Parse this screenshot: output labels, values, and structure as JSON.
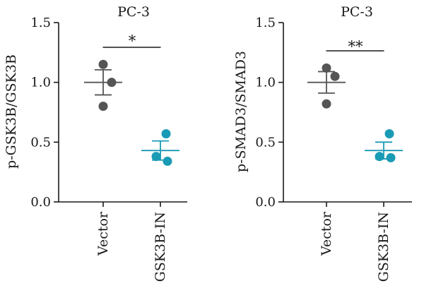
{
  "chart_data": [
    {
      "type": "scatter",
      "title": "PC-3",
      "ylabel": "p-GSK3B/GSK3B",
      "ylim": [
        0,
        1.5
      ],
      "yticks": [
        "0.0",
        "0.5",
        "1.0",
        "1.5"
      ],
      "categories": [
        "Vector",
        "GSK3B-IN"
      ],
      "colors": [
        "#555555",
        "#1a9bb5"
      ],
      "points": [
        [
          1.15,
          1.0,
          0.8
        ],
        [
          0.57,
          0.38,
          0.34
        ]
      ],
      "mean": [
        1.0,
        0.43
      ],
      "error": [
        0.105,
        0.08
      ],
      "significance": "*"
    },
    {
      "type": "scatter",
      "title": "PC-3",
      "ylabel": "p-SMAD3/SMAD3",
      "ylim": [
        0,
        1.5
      ],
      "yticks": [
        "0.0",
        "0.5",
        "1.0",
        "1.5"
      ],
      "categories": [
        "Vector",
        "GSK3B-IN"
      ],
      "colors": [
        "#555555",
        "#1a9bb5"
      ],
      "points": [
        [
          1.12,
          1.05,
          0.82
        ],
        [
          0.57,
          0.38,
          0.37
        ]
      ],
      "mean": [
        1.0,
        0.43
      ],
      "error": [
        0.09,
        0.07
      ],
      "significance": "**"
    }
  ]
}
